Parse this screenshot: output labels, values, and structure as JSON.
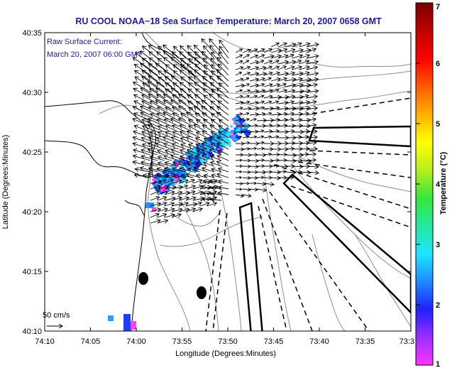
{
  "title": "RU COOL  NOAA−18  Sea Surface Temperature:  March 20, 2007 0658 GMT",
  "legend": {
    "line1": "Raw Surface Current:",
    "line2": "March 20, 2007 06:00 GMT",
    "scale_label": "50 cm/s"
  },
  "axes": {
    "x_label": "Longitude (Degrees:Minutes)",
    "y_label": "Latitude (Degrees:Minutes)",
    "x_ticks": [
      "74:10",
      "74:05",
      "74:00",
      "73:55",
      "73:50",
      "73:45",
      "73:40",
      "73:35",
      "73:3"
    ],
    "y_ticks": [
      "40:35",
      "40:30",
      "40:25",
      "40:20",
      "40:15",
      "40:10"
    ]
  },
  "colorbar": {
    "label": "Temperature (°C)",
    "min": 1,
    "max": 7,
    "ticks": [
      "1",
      "2",
      "3",
      "4",
      "5",
      "6",
      "7"
    ],
    "colors": [
      "#ff33ff",
      "#9a30ff",
      "#2020ff",
      "#1e8cff",
      "#1ee6ff",
      "#24e8a0",
      "#36e83a",
      "#b8ee1e",
      "#ffff00",
      "#ffb000",
      "#ff5a00",
      "#ff0000",
      "#c00000",
      "#7a0000"
    ]
  },
  "map": {
    "land_color": "#ffffff",
    "coast_color": "#000000",
    "bathymetry_color": "#8c8c8c",
    "vector_color": "#000000",
    "sst_colors": [
      "#1c3cff",
      "#1e78ff",
      "#22b4ff",
      "#26e0ff",
      "#2a9cff",
      "#ff40ff"
    ]
  }
}
